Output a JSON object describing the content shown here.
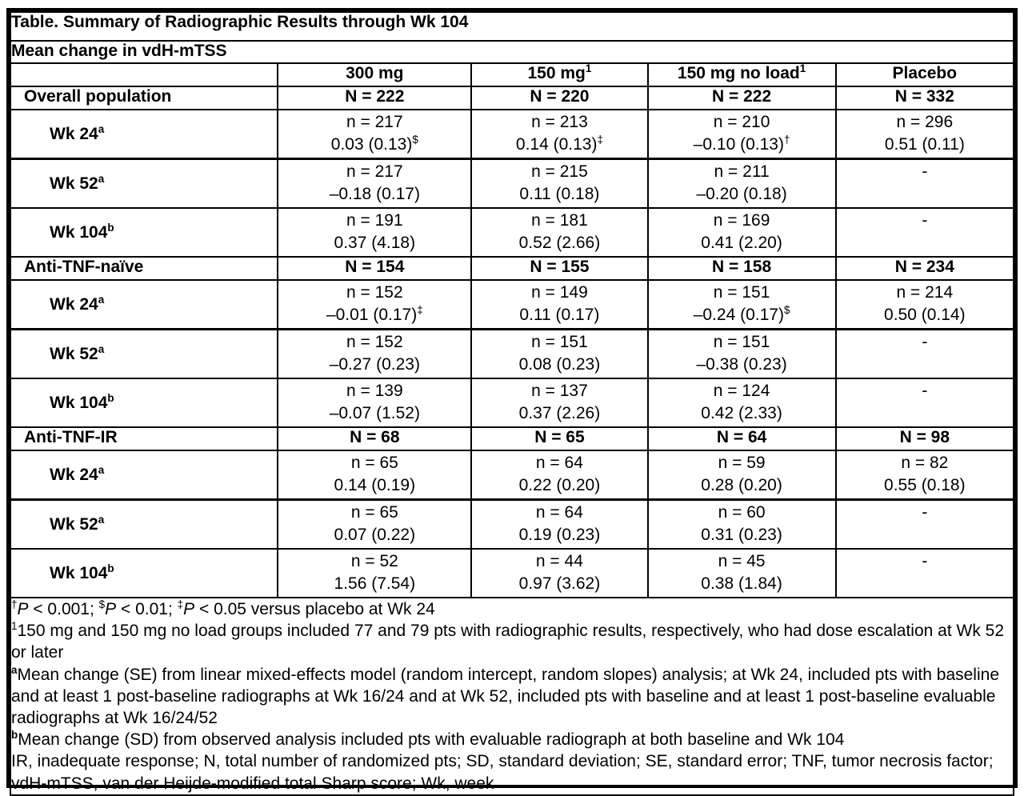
{
  "table": {
    "title": "Table. Summary of Radiographic Results through Wk 104",
    "subtitle": "Mean change in vdH-mTSS",
    "columns": [
      {
        "label": "300 mg",
        "sup": ""
      },
      {
        "label": "150 mg",
        "sup": "1"
      },
      {
        "label": "150 mg no load",
        "sup": "1"
      },
      {
        "label": "Placebo",
        "sup": ""
      }
    ],
    "sections": [
      {
        "label": "Overall population",
        "n_row": [
          "N = 222",
          "N = 220",
          "N = 222",
          "N = 332"
        ],
        "rows": [
          {
            "label": "Wk 24",
            "sup": "a",
            "cells": [
              {
                "n": "n = 217",
                "value": "0.03 (0.13)",
                "marker": "$"
              },
              {
                "n": "n = 213",
                "value": "0.14 (0.13)",
                "marker": "‡"
              },
              {
                "n": "n = 210",
                "value": "–0.10 (0.13)",
                "marker": "†"
              },
              {
                "n": "n = 296",
                "value": "0.51 (0.11)",
                "marker": ""
              }
            ]
          },
          {
            "label": "Wk 52",
            "sup": "a",
            "cells": [
              {
                "n": "n = 217",
                "value": "–0.18 (0.17)",
                "marker": ""
              },
              {
                "n": "n = 215",
                "value": "0.11 (0.18)",
                "marker": ""
              },
              {
                "n": "n = 211",
                "value": "–0.20 (0.18)",
                "marker": ""
              },
              {
                "dash": "-"
              }
            ]
          },
          {
            "label": "Wk 104",
            "sup": "b",
            "cells": [
              {
                "n": "n = 191",
                "value": "0.37 (4.18)",
                "marker": ""
              },
              {
                "n": "n = 181",
                "value": "0.52 (2.66)",
                "marker": ""
              },
              {
                "n": "n = 169",
                "value": "0.41 (2.20)",
                "marker": ""
              },
              {
                "dash": "-"
              }
            ]
          }
        ]
      },
      {
        "label": "Anti-TNF-naïve",
        "n_row": [
          "N = 154",
          "N = 155",
          "N = 158",
          "N = 234"
        ],
        "rows": [
          {
            "label": "Wk 24",
            "sup": "a",
            "cells": [
              {
                "n": "n = 152",
                "value": "–0.01 (0.17)",
                "marker": "‡"
              },
              {
                "n": "n = 149",
                "value": "0.11 (0.17)",
                "marker": ""
              },
              {
                "n": "n = 151",
                "value": "–0.24 (0.17)",
                "marker": "$"
              },
              {
                "n": "n = 214",
                "value": "0.50 (0.14)",
                "marker": ""
              }
            ]
          },
          {
            "label": "Wk 52",
            "sup": "a",
            "cells": [
              {
                "n": "n = 152",
                "value": "–0.27 (0.23)",
                "marker": ""
              },
              {
                "n": "n = 151",
                "value": "0.08 (0.23)",
                "marker": ""
              },
              {
                "n": "n = 151",
                "value": "–0.38 (0.23)",
                "marker": ""
              },
              {
                "dash": "-"
              }
            ]
          },
          {
            "label": "Wk 104",
            "sup": "b",
            "cells": [
              {
                "n": "n = 139",
                "value": "–0.07 (1.52)",
                "marker": ""
              },
              {
                "n": "n = 137",
                "value": "0.37 (2.26)",
                "marker": ""
              },
              {
                "n": "n = 124",
                "value": "0.42 (2.33)",
                "marker": ""
              },
              {
                "dash": "-"
              }
            ]
          }
        ]
      },
      {
        "label": "Anti-TNF-IR",
        "n_row": [
          "N = 68",
          "N = 65",
          "N = 64",
          "N = 98"
        ],
        "rows": [
          {
            "label": "Wk 24",
            "sup": "a",
            "cells": [
              {
                "n": "n = 65",
                "value": "0.14 (0.19)",
                "marker": ""
              },
              {
                "n": "n = 64",
                "value": "0.22 (0.20)",
                "marker": ""
              },
              {
                "n": "n = 59",
                "value": "0.28 (0.20)",
                "marker": ""
              },
              {
                "n": "n = 82",
                "value": "0.55 (0.18)",
                "marker": ""
              }
            ]
          },
          {
            "label": "Wk 52",
            "sup": "a",
            "cells": [
              {
                "n": "n = 65",
                "value": "0.07 (0.22)",
                "marker": ""
              },
              {
                "n": "n = 64",
                "value": "0.19 (0.23)",
                "marker": ""
              },
              {
                "n": "n = 60",
                "value": "0.31 (0.23)",
                "marker": ""
              },
              {
                "dash": "-"
              }
            ]
          },
          {
            "label": "Wk 104",
            "sup": "b",
            "cells": [
              {
                "n": "n = 52",
                "value": "1.56 (7.54)",
                "marker": ""
              },
              {
                "n": "n = 44",
                "value": "0.97 (3.62)",
                "marker": ""
              },
              {
                "n": "n = 45",
                "value": "0.38 (1.84)",
                "marker": ""
              },
              {
                "dash": "-"
              }
            ]
          }
        ]
      }
    ],
    "footnotes": [
      [
        {
          "t": "†",
          "sup": true
        },
        {
          "t": "P",
          "i": true
        },
        {
          "t": " < 0.001; "
        },
        {
          "t": "$",
          "sup": true
        },
        {
          "t": "P",
          "i": true
        },
        {
          "t": " < 0.01; "
        },
        {
          "t": "‡",
          "sup": true
        },
        {
          "t": "P",
          "i": true
        },
        {
          "t": " < 0.05 versus placebo at Wk 24"
        }
      ],
      [
        {
          "t": "1",
          "sup": true
        },
        {
          "t": "150 mg and 150 mg no load groups included 77 and 79 pts with radiographic results, respectively, who had dose escalation at Wk 52 or later"
        }
      ],
      [
        {
          "t": "a",
          "sup": true,
          "b": true
        },
        {
          "t": "Mean change (SE) from linear mixed-effects model (random intercept, random slopes) analysis; at Wk 24, included pts with baseline and at least 1 post-baseline radiographs at Wk 16/24 and at Wk 52, included pts with baseline and at least 1 post-baseline evaluable radiographs at Wk 16/24/52"
        }
      ],
      [
        {
          "t": "b",
          "sup": true,
          "b": true
        },
        {
          "t": "Mean change (SD) from observed analysis included pts with evaluable radiograph at both baseline and Wk 104"
        }
      ],
      [
        {
          "t": "IR, inadequate response; N, total number of randomized pts; SD, standard deviation; SE, standard error; TNF, tumor necrosis factor; vdH-mTSS, van der Heijde-modified total Sharp score; Wk, week"
        }
      ]
    ]
  }
}
